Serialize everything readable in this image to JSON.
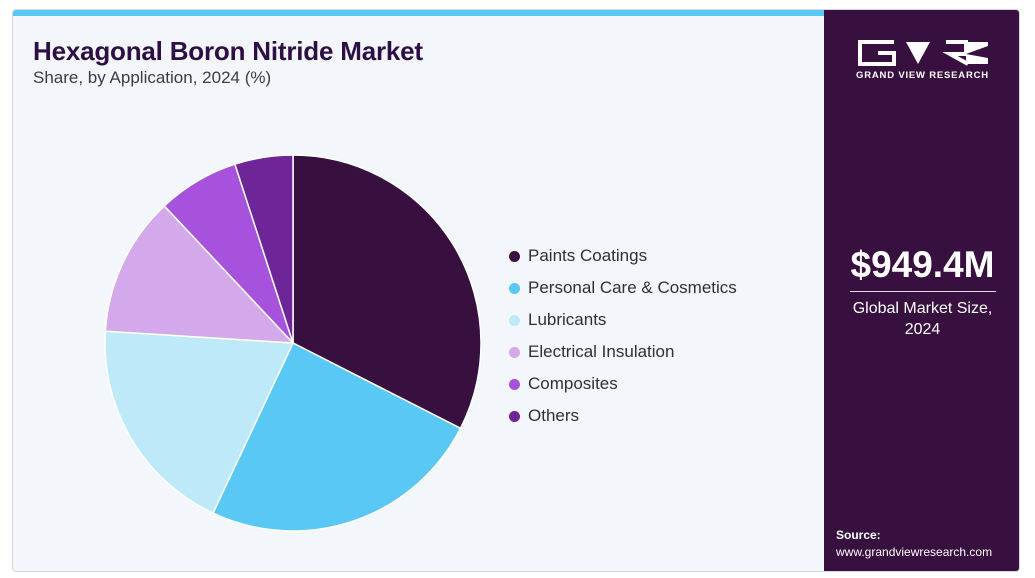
{
  "header": {
    "title": "Hexagonal Boron Nitride Market",
    "subtitle": "Share, by Application, 2024 (%)"
  },
  "sidebar": {
    "brand": "GRAND VIEW RESEARCH",
    "logo_icon": "gvr-logo-icon",
    "market_value": "$949.4M",
    "market_label_line1": "Global Market Size,",
    "market_label_line2": "2024",
    "source_title": "Source:",
    "source_url": "www.grandviewresearch.com"
  },
  "chart_data": {
    "type": "pie",
    "title": "Hexagonal Boron Nitride Market",
    "subtitle": "Share, by Application, 2024 (%)",
    "legend_position": "right",
    "start_angle_deg": 0,
    "direction": "clockwise",
    "slices": [
      {
        "label": "Paints Coatings",
        "value": 32.5,
        "color": "#37103f"
      },
      {
        "label": "Personal Care & Cosmetics",
        "value": 24.5,
        "color": "#5ac8f5"
      },
      {
        "label": "Lubricants",
        "value": 19.0,
        "color": "#bde9f9"
      },
      {
        "label": "Electrical Insulation",
        "value": 12.0,
        "color": "#d3a9ec"
      },
      {
        "label": "Composites",
        "value": 7.0,
        "color": "#a652dc"
      },
      {
        "label": "Others",
        "value": 5.0,
        "color": "#6e2598"
      }
    ]
  }
}
